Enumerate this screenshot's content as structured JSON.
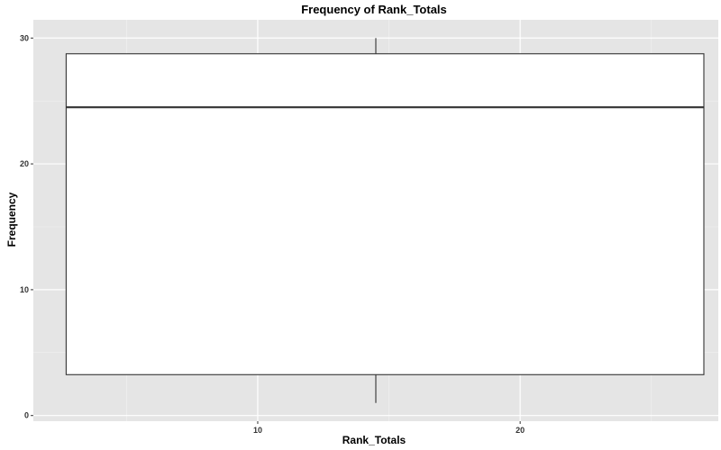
{
  "chart_data": {
    "type": "boxplot",
    "title": "Frequency of Rank_Totals",
    "xlabel": "Rank_Totals",
    "ylabel": "Frequency",
    "xlim": [
      1.45,
      27.55
    ],
    "ylim": [
      -0.45,
      31.45
    ],
    "x_ticks": [
      10,
      20
    ],
    "y_ticks": [
      0,
      10,
      20,
      30
    ],
    "grid": true,
    "box": {
      "x_min": 2.7,
      "x_max": 27.0,
      "x_center": 14.5,
      "q1": 3.25,
      "median": 24.5,
      "q3": 28.75,
      "whisker_low": 1,
      "whisker_high": 30
    },
    "colors": {
      "panel": "#e5e5e5",
      "grid_major": "#ffffff",
      "box_fill": "#ffffff",
      "box_line": "#333333"
    }
  }
}
